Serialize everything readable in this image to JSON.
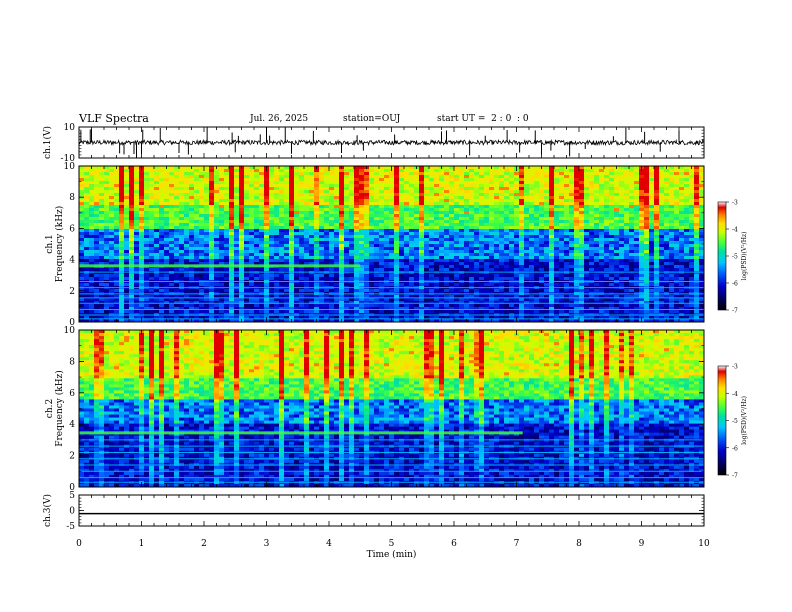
{
  "header": {
    "title": "VLF Spectra",
    "date": "Jul. 26, 2025",
    "station": "station=OUJ",
    "start": "start UT =  2 : 0  : 0"
  },
  "chart_data": [
    {
      "type": "line",
      "name": "ch1-waveform",
      "ylabel": "ch.1(V)",
      "ylim": [
        -10,
        10
      ],
      "yticks": [
        "10",
        "-10"
      ],
      "xlim": [
        0,
        10
      ],
      "baseline": 0,
      "spikes_min": [
        0.03,
        0.18,
        0.2,
        0.65,
        0.72,
        0.88,
        0.92,
        1.0,
        1.02,
        1.3,
        1.6,
        1.75,
        2.05,
        2.45,
        2.5,
        2.55,
        2.9,
        3.0,
        3.05,
        3.3,
        3.4,
        3.75,
        4.2,
        4.45,
        4.55,
        5.05,
        5.8,
        5.88,
        6.25,
        6.5,
        6.85,
        7.05,
        7.3,
        7.4,
        7.55,
        7.85,
        8.1,
        8.55,
        8.75,
        9.05,
        9.3,
        9.6
      ]
    },
    {
      "type": "heatmap",
      "name": "ch1-spectrogram",
      "ylabel": "ch.1\nFrequency (kHz)",
      "ylim": [
        0,
        10
      ],
      "yticks": [
        "0",
        "2",
        "4",
        "6",
        "8",
        "10"
      ],
      "xlim": [
        0,
        10
      ],
      "colorbar": {
        "label": "log(PSD)(V²/Hz)",
        "ticks": [
          "-3",
          "-4",
          "-5",
          "-6",
          "-7"
        ],
        "range": [
          -7,
          -3
        ]
      },
      "lines_khz": [
        0.2,
        0.45,
        0.8,
        1.2,
        1.55,
        1.8,
        2.2,
        2.6,
        3.2,
        3.6
      ],
      "line_break_min": 4.5,
      "noise_top_khz": 6.0
    },
    {
      "type": "heatmap",
      "name": "ch2-spectrogram",
      "ylabel": "ch.2\nFrequency (kHz)",
      "ylim": [
        0,
        10
      ],
      "yticks": [
        "0",
        "2",
        "4",
        "6",
        "8",
        "10"
      ],
      "xlim": [
        0,
        10
      ],
      "colorbar": {
        "label": "log(PSD)(V²/Hz)",
        "ticks": [
          "-3",
          "-4",
          "-5",
          "-6",
          "-7"
        ],
        "range": [
          -7,
          -3
        ]
      },
      "lines_khz": [
        0.3,
        0.6,
        1.0,
        1.4,
        1.8,
        2.2,
        2.6,
        3.0,
        3.45
      ],
      "line_break_min": 7.1,
      "noise_top_khz": 5.5
    },
    {
      "type": "line",
      "name": "ch3-waveform",
      "ylabel": "ch.3(V)",
      "ylim": [
        -5,
        5
      ],
      "yticks": [
        "5",
        "0",
        "-5"
      ],
      "xlim": [
        0,
        10
      ],
      "level": -1.0
    }
  ],
  "xaxis": {
    "label": "Time (min)",
    "ticks": [
      "0",
      "1",
      "2",
      "3",
      "4",
      "5",
      "6",
      "7",
      "8",
      "9",
      "10"
    ]
  },
  "colors": {
    "scale": [
      "#000000",
      "#00005a",
      "#0000c8",
      "#0060ff",
      "#00c8ff",
      "#00e0a0",
      "#40ff40",
      "#c8ff00",
      "#ffe000",
      "#ff8000",
      "#e00000",
      "#ffffff"
    ]
  }
}
